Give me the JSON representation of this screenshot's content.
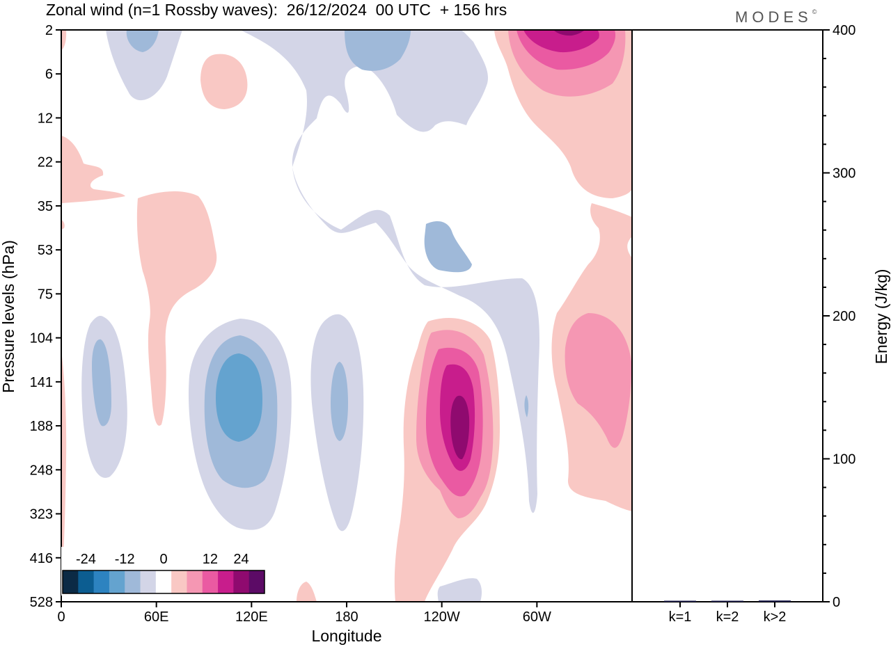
{
  "chart_data": {
    "type": "heatmap",
    "title": "Zonal wind (n=1 Rossby waves):  26/12/2024  00 UTC  + 156 hrs",
    "brand": "MODES",
    "brand_mark": "©",
    "xlabel": "Longitude",
    "ylabel": "Pressure levels (hPa)",
    "x_ticks": [
      "0",
      "60E",
      "120E",
      "180",
      "120W",
      "60W"
    ],
    "x_tick_values": [
      0,
      60,
      120,
      180,
      240,
      300
    ],
    "xlim": [
      0,
      360
    ],
    "y_ticks": [
      "2",
      "6",
      "12",
      "22",
      "35",
      "53",
      "75",
      "104",
      "141",
      "188",
      "248",
      "323",
      "416",
      "528"
    ],
    "colorbar": {
      "labels": [
        "-24",
        "-12",
        "0",
        "12",
        "24"
      ],
      "label_values": [
        -24,
        -12,
        0,
        12,
        24
      ],
      "levels": [
        -30,
        -24,
        -18,
        -12,
        -6,
        -3,
        3,
        6,
        12,
        18,
        24,
        30
      ],
      "colors": [
        "#0b2a45",
        "#0c5d91",
        "#2d83c0",
        "#64a3cf",
        "#9fb9d9",
        "#d3d5e7",
        "#ffffff",
        "#f9c8c4",
        "#f597b3",
        "#ea5aa2",
        "#c81d8c",
        "#8f0a6f",
        "#5c0b66"
      ]
    },
    "contours": [
      {
        "id": "pos-upper-right",
        "value": 3
      },
      {
        "id": "pos-upper-right",
        "value": 6
      },
      {
        "id": "pos-upper-right",
        "value": 12
      },
      {
        "id": "pos-upper-right",
        "value": 18
      },
      {
        "id": "pos-upper-right",
        "value": 24
      },
      {
        "id": "neg-upper-mid",
        "value": -3
      },
      {
        "id": "neg-upper-mid",
        "value": -6
      },
      {
        "id": "pos-120w-jet",
        "value": 3
      },
      {
        "id": "pos-120w-jet",
        "value": 6
      },
      {
        "id": "pos-120w-jet",
        "value": 12
      },
      {
        "id": "pos-120w-jet",
        "value": 18
      },
      {
        "id": "neg-120e",
        "value": -3
      },
      {
        "id": "neg-120e",
        "value": -6
      },
      {
        "id": "neg-120e",
        "value": -12
      },
      {
        "id": "pos-east-edge",
        "value": 3
      },
      {
        "id": "pos-east-edge",
        "value": 6
      }
    ],
    "energy_panel": {
      "ylabel": "Energy (J/kg)",
      "ylim": [
        0,
        400
      ],
      "y_ticks": [
        0,
        100,
        200,
        300,
        400
      ],
      "categories": [
        "k=1",
        "k=2",
        "k>2"
      ],
      "values": [
        0.3,
        0.5,
        0.9
      ]
    }
  }
}
